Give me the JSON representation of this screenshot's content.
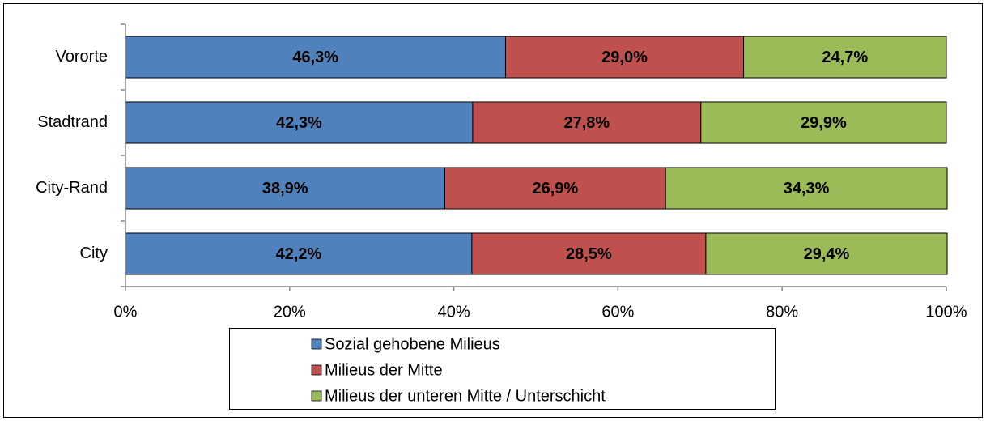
{
  "chart_data": {
    "type": "stacked_barh",
    "categories": [
      "Vororte",
      "Stadtrand",
      "City-Rand",
      "City"
    ],
    "series": [
      {
        "name": "Sozial gehobene Milieus",
        "color": "#4f81bd",
        "values": [
          46.3,
          42.3,
          38.9,
          42.2
        ],
        "value_labels": [
          "46,3%",
          "42,3%",
          "38,9%",
          "42,2%"
        ]
      },
      {
        "name": "Milieus der Mitte",
        "color": "#c0504d",
        "values": [
          29.0,
          27.8,
          26.9,
          28.5
        ],
        "value_labels": [
          "29,0%",
          "27,8%",
          "26,9%",
          "28,5%"
        ]
      },
      {
        "name": "Milieus der unteren Mitte / Unterschicht",
        "color": "#9bbb59",
        "values": [
          24.7,
          29.9,
          34.3,
          29.4
        ],
        "value_labels": [
          "24,7%",
          "29,9%",
          "34,3%",
          "29,4%"
        ]
      }
    ],
    "xlim": [
      0,
      100
    ],
    "xticks": [
      {
        "value": 0,
        "label": "0%"
      },
      {
        "value": 20,
        "label": "20%"
      },
      {
        "value": 40,
        "label": "40%"
      },
      {
        "value": 60,
        "label": "60%"
      },
      {
        "value": 80,
        "label": "80%"
      },
      {
        "value": 100,
        "label": "100%"
      }
    ],
    "legend": "bottom"
  }
}
